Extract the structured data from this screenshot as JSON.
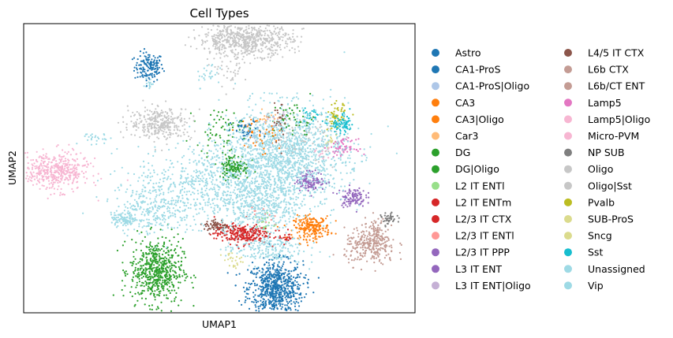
{
  "chart_data": {
    "type": "scatter",
    "title": "Cell Types",
    "xlabel": "UMAP1",
    "ylabel": "UMAP2",
    "xlim": [
      -9,
      21
    ],
    "ylim": [
      -5,
      13
    ],
    "grid": false,
    "x_ticks": [],
    "y_ticks": [],
    "legend_placement": "right, outside plot, two columns",
    "categories": [
      {
        "name": "Astro",
        "color": "#1f77b4",
        "clusters": [
          {
            "cx": 0.6,
            "cy": 10.3,
            "sx": 0.55,
            "sy": 0.45,
            "n": 150
          },
          {
            "cx": 10.3,
            "cy": -3.5,
            "sx": 1.05,
            "sy": 0.85,
            "n": 700
          }
        ]
      },
      {
        "name": "CA1-ProS",
        "color": "#1f77b4",
        "clusters": [
          {
            "cx": 8.1,
            "cy": 6.3,
            "sx": 0.6,
            "sy": 0.35,
            "n": 40
          }
        ]
      },
      {
        "name": "CA1-ProS|Oligo",
        "color": "#aec7e8",
        "clusters": [
          {
            "cx": 8.9,
            "cy": 6.0,
            "sx": 0.8,
            "sy": 0.5,
            "n": 25
          }
        ]
      },
      {
        "name": "CA3",
        "color": "#ff7f0e",
        "clusters": [
          {
            "cx": 13.1,
            "cy": 0.3,
            "sx": 0.7,
            "sy": 0.35,
            "n": 220
          }
        ]
      },
      {
        "name": "CA3|Oligo",
        "color": "#ff7f0e",
        "clusters": [
          {
            "cx": 8.7,
            "cy": 6.5,
            "sx": 0.7,
            "sy": 0.5,
            "n": 30
          },
          {
            "cx": 9.4,
            "cy": 5.8,
            "sx": 0.6,
            "sy": 0.4,
            "n": 20
          }
        ]
      },
      {
        "name": "Car3",
        "color": "#ffbb78",
        "clusters": [
          {
            "cx": 9.7,
            "cy": 7.0,
            "sx": 0.4,
            "sy": 0.3,
            "n": 15
          }
        ]
      },
      {
        "name": "DG",
        "color": "#2ca02c",
        "clusters": [
          {
            "cx": 1.2,
            "cy": -2.4,
            "sx": 1.0,
            "sy": 1.0,
            "n": 600
          }
        ]
      },
      {
        "name": "DG|Oligo",
        "color": "#2ca02c",
        "clusters": [
          {
            "cx": 7.1,
            "cy": 4.1,
            "sx": 0.6,
            "sy": 0.4,
            "n": 140
          },
          {
            "cx": 6.0,
            "cy": 6.5,
            "sx": 0.9,
            "sy": 0.6,
            "n": 60
          },
          {
            "cx": 11.7,
            "cy": 7.0,
            "sx": 0.8,
            "sy": 0.6,
            "n": 50
          }
        ]
      },
      {
        "name": "L2 IT ENTl",
        "color": "#98df8a",
        "clusters": [
          {
            "cx": 9.4,
            "cy": 0.6,
            "sx": 0.5,
            "sy": 0.3,
            "n": 20
          }
        ]
      },
      {
        "name": "L2 IT ENTm",
        "color": "#d62728",
        "clusters": [
          {
            "cx": 7.7,
            "cy": -0.1,
            "sx": 1.05,
            "sy": 0.3,
            "n": 260
          }
        ]
      },
      {
        "name": "L2/3 IT CTX",
        "color": "#d62728",
        "clusters": [
          {
            "cx": 11.1,
            "cy": -0.3,
            "sx": 0.25,
            "sy": 0.2,
            "n": 20
          }
        ]
      },
      {
        "name": "L2/3 IT ENTl",
        "color": "#ff9896",
        "clusters": [
          {
            "cx": 9.3,
            "cy": 1.0,
            "sx": 0.4,
            "sy": 0.3,
            "n": 15
          }
        ]
      },
      {
        "name": "L2/3 IT PPP",
        "color": "#9467bd",
        "clusters": [
          {
            "cx": 13.0,
            "cy": 3.2,
            "sx": 0.55,
            "sy": 0.3,
            "n": 120
          }
        ]
      },
      {
        "name": "L3 IT ENT",
        "color": "#9467bd",
        "clusters": [
          {
            "cx": 16.2,
            "cy": 2.2,
            "sx": 0.5,
            "sy": 0.3,
            "n": 110
          }
        ]
      },
      {
        "name": "L3 IT ENT|Oligo",
        "color": "#c5b0d5",
        "clusters": [
          {
            "cx": 10.2,
            "cy": 7.2,
            "sx": 0.5,
            "sy": 0.3,
            "n": 15
          }
        ]
      },
      {
        "name": "L4/5 IT CTX",
        "color": "#8c564b",
        "clusters": [
          {
            "cx": 5.8,
            "cy": 0.4,
            "sx": 0.5,
            "sy": 0.2,
            "n": 70
          },
          {
            "cx": 10.6,
            "cy": 6.8,
            "sx": 0.25,
            "sy": 0.6,
            "n": 30
          }
        ]
      },
      {
        "name": "L6b CTX",
        "color": "#c49c94",
        "clusters": [
          {
            "cx": 17.6,
            "cy": -0.9,
            "sx": 1.0,
            "sy": 0.55,
            "n": 260
          }
        ]
      },
      {
        "name": "L6b/CT ENT",
        "color": "#c49c94",
        "clusters": [
          {
            "cx": 18.0,
            "cy": 0.2,
            "sx": 0.4,
            "sy": 0.4,
            "n": 60
          }
        ]
      },
      {
        "name": "Lamp5",
        "color": "#e377c2",
        "clusters": [
          {
            "cx": 15.5,
            "cy": 5.3,
            "sx": 0.5,
            "sy": 0.25,
            "n": 60
          }
        ]
      },
      {
        "name": "Lamp5|Oligo",
        "color": "#f7b6d2",
        "clusters": [
          {
            "cx": -6.6,
            "cy": 3.8,
            "sx": 1.3,
            "sy": 0.6,
            "n": 450
          }
        ]
      },
      {
        "name": "Micro-PVM",
        "color": "#f7b6d2",
        "clusters": [
          {
            "cx": 14.0,
            "cy": 5.0,
            "sx": 0.3,
            "sy": 0.3,
            "n": 15
          }
        ]
      },
      {
        "name": "NP SUB",
        "color": "#7f7f7f",
        "clusters": [
          {
            "cx": 19.0,
            "cy": 0.8,
            "sx": 0.3,
            "sy": 0.2,
            "n": 40
          }
        ]
      },
      {
        "name": "Oligo",
        "color": "#c7c7c7",
        "clusters": [
          {
            "cx": 8.0,
            "cy": 12.0,
            "sx": 1.8,
            "sy": 0.5,
            "n": 650
          },
          {
            "cx": 1.5,
            "cy": 6.8,
            "sx": 1.2,
            "sy": 0.5,
            "n": 320
          },
          {
            "cx": 7.0,
            "cy": 10.0,
            "sx": 0.6,
            "sy": 0.5,
            "n": 40
          }
        ]
      },
      {
        "name": "Oligo|Sst",
        "color": "#c7c7c7",
        "clusters": [
          {
            "cx": 12.5,
            "cy": 6.0,
            "sx": 1.2,
            "sy": 0.8,
            "n": 70
          }
        ]
      },
      {
        "name": "Pvalb",
        "color": "#bcbd22",
        "clusters": [
          {
            "cx": 15.0,
            "cy": 7.2,
            "sx": 0.35,
            "sy": 0.4,
            "n": 60
          }
        ]
      },
      {
        "name": "SUB-ProS",
        "color": "#dbdb8d",
        "clusters": [
          {
            "cx": 7.0,
            "cy": -1.6,
            "sx": 0.35,
            "sy": 0.3,
            "n": 25
          }
        ]
      },
      {
        "name": "Sncg",
        "color": "#dbdb8d",
        "clusters": [
          {
            "cx": 14.6,
            "cy": 5.6,
            "sx": 0.3,
            "sy": 0.3,
            "n": 15
          }
        ]
      },
      {
        "name": "Sst",
        "color": "#17becf",
        "clusters": [
          {
            "cx": 15.4,
            "cy": 6.7,
            "sx": 0.5,
            "sy": 0.3,
            "n": 80
          },
          {
            "cx": 13.0,
            "cy": 7.3,
            "sx": 0.4,
            "sy": 0.25,
            "n": 25
          }
        ]
      },
      {
        "name": "Unassigned",
        "color": "#9edae5",
        "clusters": [
          {
            "cx": 11.0,
            "cy": 4.8,
            "sx": 2.4,
            "sy": 1.5,
            "n": 1500
          },
          {
            "cx": 5.5,
            "cy": 3.0,
            "sx": 3.0,
            "sy": 1.2,
            "n": 650
          },
          {
            "cx": 9.0,
            "cy": 1.5,
            "sx": 1.5,
            "sy": 0.8,
            "n": 350
          },
          {
            "cx": 9.5,
            "cy": -1.0,
            "sx": 1.5,
            "sy": 0.5,
            "n": 220
          },
          {
            "cx": 1.0,
            "cy": 1.5,
            "sx": 1.5,
            "sy": 0.8,
            "n": 260
          },
          {
            "cx": -1.3,
            "cy": 0.8,
            "sx": 0.5,
            "sy": 0.2,
            "n": 90
          }
        ]
      },
      {
        "name": "Vip",
        "color": "#9edae5",
        "clusters": [
          {
            "cx": -3.5,
            "cy": 5.8,
            "sx": 0.5,
            "sy": 0.3,
            "n": 25
          },
          {
            "cx": 0.6,
            "cy": 9.2,
            "sx": 0.2,
            "sy": 0.2,
            "n": 15
          },
          {
            "cx": 5.2,
            "cy": 9.9,
            "sx": 0.5,
            "sy": 0.4,
            "n": 25
          }
        ]
      }
    ]
  }
}
